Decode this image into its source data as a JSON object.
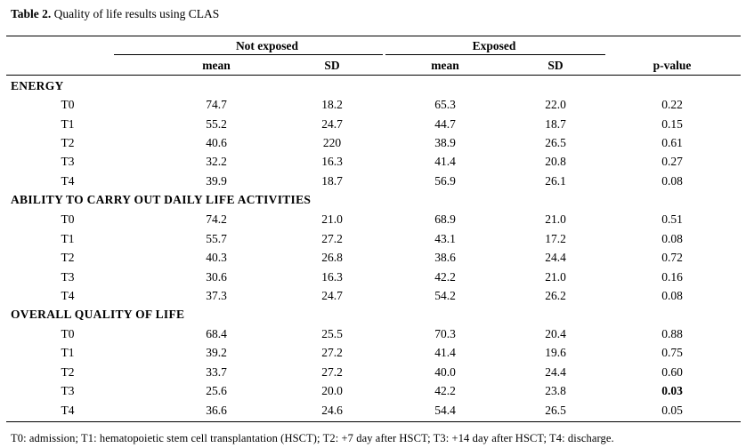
{
  "title": {
    "prefix": "Table 2.",
    "text": " Quality of life results using CLAS"
  },
  "headers": {
    "group_not_exposed": "Not exposed",
    "group_exposed": "Exposed",
    "mean1": "mean",
    "sd1": "SD",
    "mean2": "mean",
    "sd2": "SD",
    "pvalue": "p-value"
  },
  "sections": [
    {
      "name": "ENERGY",
      "rows": [
        {
          "label": "T0",
          "m1": "74.7",
          "s1": "18.2",
          "m2": "65.3",
          "s2": "22.0",
          "p": "0.22",
          "p_bold": false
        },
        {
          "label": "T1",
          "m1": "55.2",
          "s1": "24.7",
          "m2": "44.7",
          "s2": "18.7",
          "p": "0.15",
          "p_bold": false
        },
        {
          "label": "T2",
          "m1": "40.6",
          "s1": "220",
          "m2": "38.9",
          "s2": "26.5",
          "p": "0.61",
          "p_bold": false
        },
        {
          "label": "T3",
          "m1": "32.2",
          "s1": "16.3",
          "m2": "41.4",
          "s2": "20.8",
          "p": "0.27",
          "p_bold": false
        },
        {
          "label": "T4",
          "m1": "39.9",
          "s1": "18.7",
          "m2": "56.9",
          "s2": "26.1",
          "p": "0.08",
          "p_bold": false
        }
      ]
    },
    {
      "name": "ABILITY  TO  CARRY  OUT  DAILY  LIFE  ACTIVITIES",
      "rows": [
        {
          "label": "T0",
          "m1": "74.2",
          "s1": "21.0",
          "m2": "68.9",
          "s2": "21.0",
          "p": "0.51",
          "p_bold": false
        },
        {
          "label": "T1",
          "m1": "55.7",
          "s1": "27.2",
          "m2": "43.1",
          "s2": "17.2",
          "p": "0.08",
          "p_bold": false
        },
        {
          "label": "T2",
          "m1": "40.3",
          "s1": "26.8",
          "m2": "38.6",
          "s2": "24.4",
          "p": "0.72",
          "p_bold": false
        },
        {
          "label": "T3",
          "m1": "30.6",
          "s1": "16.3",
          "m2": "42.2",
          "s2": "21.0",
          "p": "0.16",
          "p_bold": false
        },
        {
          "label": "T4",
          "m1": "37.3",
          "s1": "24.7",
          "m2": "54.2",
          "s2": "26.2",
          "p": "0.08",
          "p_bold": false
        }
      ]
    },
    {
      "name": "OVERALL  QUALITY  OF  LIFE",
      "rows": [
        {
          "label": "T0",
          "m1": "68.4",
          "s1": "25.5",
          "m2": "70.3",
          "s2": "20.4",
          "p": "0.88",
          "p_bold": false
        },
        {
          "label": "T1",
          "m1": "39.2",
          "s1": "27.2",
          "m2": "41.4",
          "s2": "19.6",
          "p": "0.75",
          "p_bold": false
        },
        {
          "label": "T2",
          "m1": "33.7",
          "s1": "27.2",
          "m2": "40.0",
          "s2": "24.4",
          "p": "0.60",
          "p_bold": false
        },
        {
          "label": "T3",
          "m1": "25.6",
          "s1": "20.0",
          "m2": "42.2",
          "s2": "23.8",
          "p": "0.03",
          "p_bold": true
        },
        {
          "label": "T4",
          "m1": "36.6",
          "s1": "24.6",
          "m2": "54.4",
          "s2": "26.5",
          "p": "0.05",
          "p_bold": false
        }
      ]
    }
  ],
  "footnote": "T0: admission; T1: hematopoietic stem cell transplantation (HSCT); T2: +7 day after HSCT; T3: +14 day after HSCT; T4: discharge."
}
